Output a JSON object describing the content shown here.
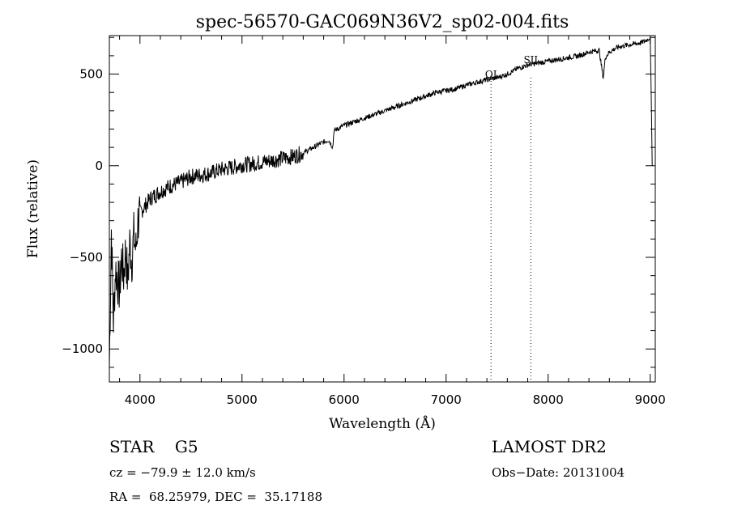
{
  "chart_data": {
    "type": "line",
    "title": "spec-56570-GAC069N36V2_sp02-004.fits",
    "xlabel": "Wavelength (Å)",
    "ylabel": "Flux (relative)",
    "xlim": [
      3700,
      9050
    ],
    "ylim": [
      -1180,
      710
    ],
    "xticks": [
      4000,
      5000,
      6000,
      7000,
      8000,
      9000
    ],
    "yticks": [
      -1000,
      -500,
      0,
      500
    ],
    "xtick_labels": [
      "4000",
      "5000",
      "6000",
      "7000",
      "8000",
      "9000"
    ],
    "ytick_labels": [
      "−1000",
      "−500",
      "0",
      "500"
    ],
    "grid": false,
    "series": [
      {
        "x": [
          3700,
          3720,
          3740,
          3760,
          3780,
          3800,
          3820,
          3840,
          3860,
          3880,
          3900,
          3920,
          3940,
          3960,
          3980,
          4000,
          4050,
          4100,
          4150,
          4200,
          4300,
          4400,
          4500,
          4600,
          4700,
          4800,
          4900,
          5000,
          5100,
          5200,
          5300,
          5400,
          5500,
          5600,
          5700,
          5800,
          5850,
          5890,
          5900,
          5950,
          6000,
          6100,
          6200,
          6300,
          6400,
          6500,
          6600,
          6700,
          6800,
          6900,
          7000,
          7100,
          7200,
          7300,
          7400,
          7500,
          7600,
          7700,
          7800,
          7900,
          8000,
          8100,
          8200,
          8300,
          8400,
          8500,
          8540,
          8560,
          8600,
          8660,
          8700,
          8800,
          8900,
          8950,
          9000,
          9010,
          9020
        ],
        "y": [
          -1100,
          -350,
          -850,
          -560,
          -620,
          -680,
          -500,
          -600,
          -450,
          -640,
          -420,
          -520,
          -380,
          -460,
          -300,
          -260,
          -220,
          -180,
          -160,
          -140,
          -110,
          -90,
          -60,
          -50,
          -40,
          -20,
          -10,
          5,
          10,
          20,
          30,
          40,
          50,
          70,
          100,
          130,
          140,
          100,
          190,
          205,
          220,
          240,
          260,
          280,
          300,
          320,
          340,
          360,
          380,
          400,
          410,
          420,
          440,
          455,
          470,
          480,
          500,
          530,
          550,
          560,
          570,
          580,
          590,
          600,
          620,
          630,
          480,
          590,
          620,
          640,
          650,
          660,
          670,
          680,
          700,
          400,
          0
        ]
      }
    ],
    "annotations": [
      {
        "label": "OI",
        "x": 7440
      },
      {
        "label": "SII",
        "x": 7830
      }
    ],
    "info": {
      "left_line1": "STAR    G5",
      "left_line2": "cz = −79.9 ± 12.0 km/s",
      "left_line3": "RA =  68.25979, DEC =  35.17188",
      "right_line1": "LAMOST DR2",
      "right_line2": "Obs−Date: 20131004"
    }
  }
}
